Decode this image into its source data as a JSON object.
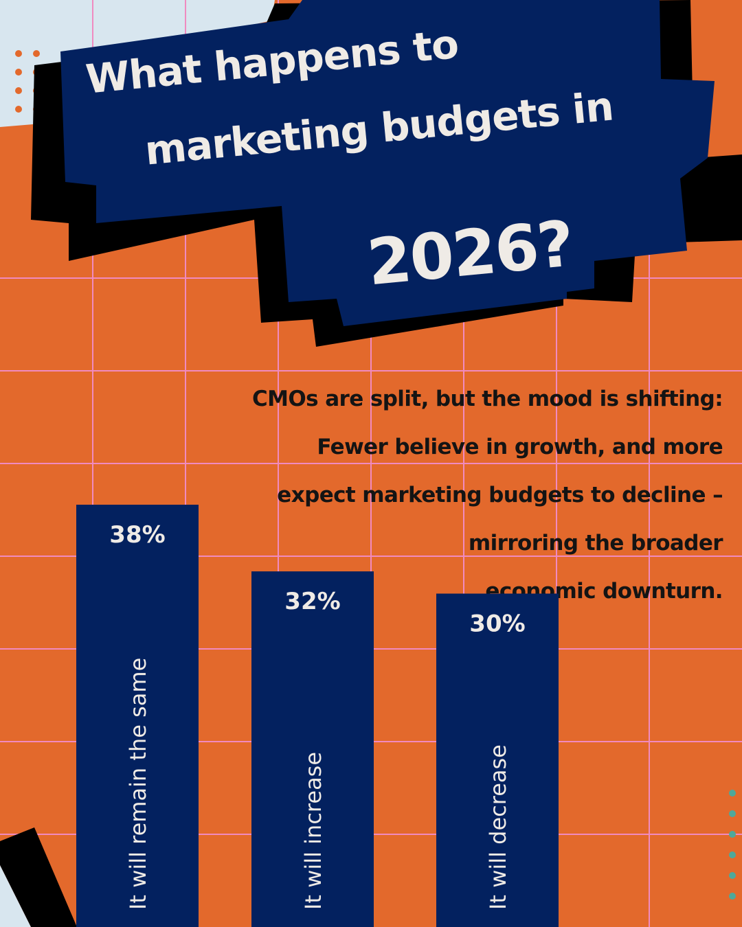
{
  "title": {
    "line1": "What happens to",
    "line2": "marketing budgets in",
    "line3": "2026?"
  },
  "subtitle": {
    "line1": "CMOs are split, but the mood is shifting:",
    "line2": "Fewer believe in growth, and more",
    "line3": "expect marketing budgets to decline –",
    "line4": "mirroring the broader",
    "line5": "economic downturn."
  },
  "colors": {
    "background": "#E3692C",
    "bar": "#03215F",
    "title_panel": "#03215F",
    "shadow": "#000000",
    "light_text": "#EFEBE6",
    "dark_text": "#141414",
    "grid": "#F08AC0",
    "corner_light": "#D8E6EF",
    "dot_orange": "#E3692C",
    "dot_teal": "#4FA89A"
  },
  "chart_data": {
    "type": "bar",
    "categories": [
      "It will remain the same",
      "It will increase",
      "It will decrease"
    ],
    "values": [
      38,
      32,
      30
    ],
    "value_labels": [
      "38%",
      "32%",
      "30%"
    ],
    "unit": "%",
    "ylim": [
      0,
      38
    ],
    "orientation": "vertical",
    "category_labels": "vertical-inside-bars",
    "grid": true
  }
}
